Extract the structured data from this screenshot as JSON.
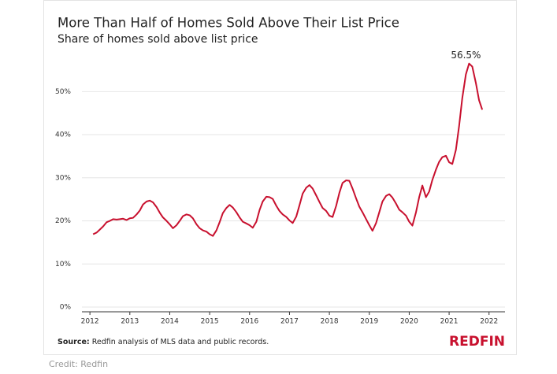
{
  "chart_data": {
    "type": "line",
    "title": "More Than Half of Homes Sold Above Their List Price",
    "subtitle": "Share of homes sold above list price",
    "annotation": "56.5%",
    "source_label": "Source:",
    "source": "Redfin analysis of MLS data and public records.",
    "logo": "REDFIN",
    "credit": "Credit: Redfin",
    "xlim": [
      2011.8,
      2022.4
    ],
    "xticks": [
      2012,
      2013,
      2014,
      2015,
      2016,
      2017,
      2018,
      2019,
      2020,
      2021,
      2022
    ],
    "ylim": [
      0,
      57
    ],
    "yticks": [
      {
        "value": 0,
        "label": "0%"
      },
      {
        "value": 10,
        "label": "10%"
      },
      {
        "value": 20,
        "label": "20%"
      },
      {
        "value": 30,
        "label": "30%"
      },
      {
        "value": 40,
        "label": "40%"
      },
      {
        "value": 50,
        "label": "50%"
      }
    ],
    "grid": true,
    "series": [
      {
        "color": "#c8102e",
        "x": [
          2012.08,
          2012.17,
          2012.25,
          2012.33,
          2012.42,
          2012.5,
          2012.58,
          2012.67,
          2012.75,
          2012.83,
          2012.92,
          2013.0,
          2013.08,
          2013.17,
          2013.25,
          2013.33,
          2013.42,
          2013.5,
          2013.58,
          2013.67,
          2013.75,
          2013.83,
          2013.92,
          2014.0,
          2014.08,
          2014.17,
          2014.25,
          2014.33,
          2014.42,
          2014.5,
          2014.58,
          2014.67,
          2014.75,
          2014.83,
          2014.92,
          2015.0,
          2015.08,
          2015.17,
          2015.25,
          2015.33,
          2015.42,
          2015.5,
          2015.58,
          2015.67,
          2015.75,
          2015.83,
          2015.92,
          2016.0,
          2016.08,
          2016.17,
          2016.25,
          2016.33,
          2016.42,
          2016.5,
          2016.58,
          2016.67,
          2016.75,
          2016.83,
          2016.92,
          2017.0,
          2017.08,
          2017.17,
          2017.25,
          2017.33,
          2017.42,
          2017.5,
          2017.58,
          2017.67,
          2017.75,
          2017.83,
          2017.92,
          2018.0,
          2018.08,
          2018.17,
          2018.25,
          2018.33,
          2018.42,
          2018.5,
          2018.58,
          2018.67,
          2018.75,
          2018.83,
          2018.92,
          2019.0,
          2019.08,
          2019.17,
          2019.25,
          2019.33,
          2019.42,
          2019.5,
          2019.58,
          2019.67,
          2019.75,
          2019.83,
          2019.92,
          2020.0,
          2020.08,
          2020.17,
          2020.25,
          2020.33,
          2020.42,
          2020.5,
          2020.58,
          2020.67,
          2020.75,
          2020.83,
          2020.92,
          2021.0,
          2021.08,
          2021.17,
          2021.25,
          2021.33,
          2021.42,
          2021.5,
          2021.58,
          2021.67,
          2021.75,
          2021.83
        ],
        "values": [
          16.9,
          17.3,
          18.0,
          18.7,
          19.7,
          20.0,
          20.4,
          20.3,
          20.4,
          20.5,
          20.2,
          20.6,
          20.7,
          21.5,
          22.4,
          23.8,
          24.5,
          24.7,
          24.3,
          23.2,
          21.9,
          20.8,
          20.0,
          19.2,
          18.3,
          19.0,
          20.0,
          21.1,
          21.5,
          21.3,
          20.6,
          19.2,
          18.3,
          17.8,
          17.5,
          16.9,
          16.5,
          17.8,
          19.7,
          21.8,
          23.0,
          23.7,
          23.1,
          22.0,
          20.8,
          19.8,
          19.4,
          19.0,
          18.4,
          19.8,
          22.5,
          24.5,
          25.6,
          25.5,
          25.1,
          23.5,
          22.3,
          21.5,
          20.9,
          20.1,
          19.5,
          21.0,
          23.6,
          26.3,
          27.7,
          28.3,
          27.5,
          25.9,
          24.4,
          23.0,
          22.3,
          21.2,
          20.9,
          23.5,
          26.5,
          28.8,
          29.4,
          29.3,
          27.5,
          25.2,
          23.3,
          22.0,
          20.4,
          19.0,
          17.7,
          19.5,
          22.0,
          24.5,
          25.8,
          26.2,
          25.4,
          24.0,
          22.6,
          22.0,
          21.2,
          19.8,
          18.9,
          22.0,
          25.5,
          28.2,
          25.5,
          26.8,
          29.5,
          31.9,
          33.7,
          34.8,
          35.1,
          33.6,
          33.2,
          36.5,
          42.0,
          48.5,
          54.0,
          56.5,
          55.8,
          52.0,
          48.0,
          45.8
        ]
      }
    ]
  }
}
